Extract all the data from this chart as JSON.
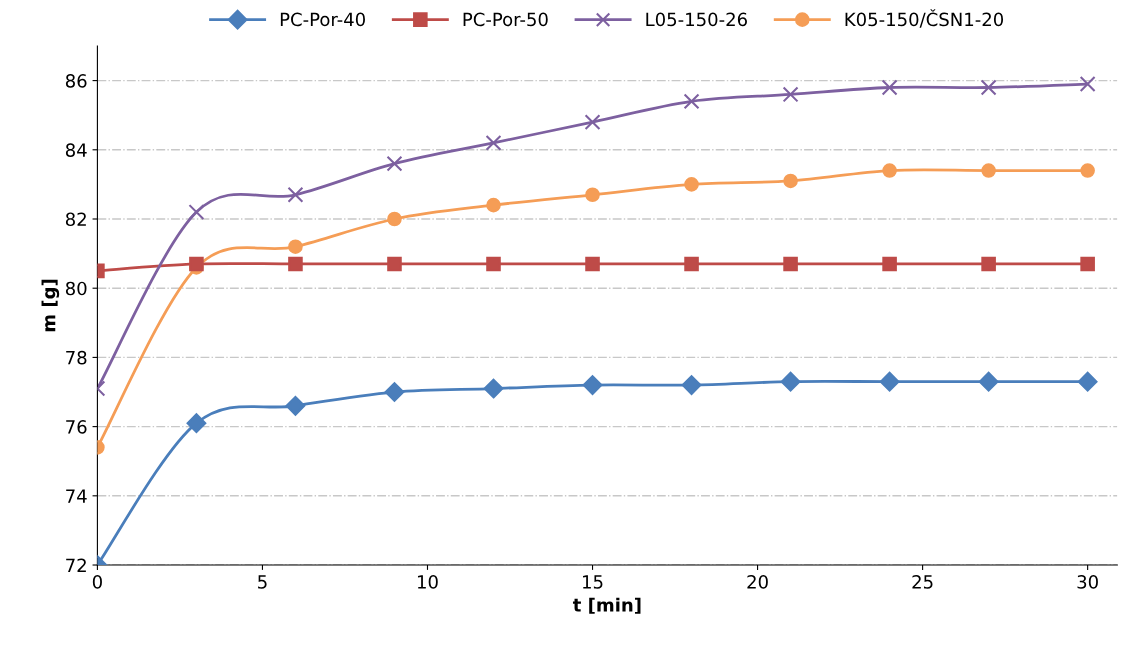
{
  "chart_data": {
    "type": "line",
    "xlabel": "t [min]",
    "ylabel": "m [g]",
    "x": [
      0,
      3,
      6,
      9,
      12,
      15,
      18,
      21,
      24,
      27,
      30
    ],
    "xlim": [
      0,
      30.9
    ],
    "xticks": [
      0,
      5,
      10,
      15,
      20,
      25,
      30
    ],
    "ylim": [
      72,
      87
    ],
    "yticks": [
      72,
      74,
      76,
      78,
      80,
      82,
      84,
      86
    ],
    "grid": "y",
    "legend": "top",
    "line_style": "solid",
    "series": [
      {
        "name": "PC-Por-40",
        "color": "#4a7ebb",
        "marker": "diamond",
        "values": [
          72.0,
          76.1,
          76.6,
          77.0,
          77.1,
          77.2,
          77.2,
          77.3,
          77.3,
          77.3,
          77.3
        ]
      },
      {
        "name": "PC-Por-50",
        "color": "#be4b48",
        "marker": "square",
        "values": [
          80.5,
          80.7,
          80.7,
          80.7,
          80.7,
          80.7,
          80.7,
          80.7,
          80.7,
          80.7,
          80.7
        ]
      },
      {
        "name": "L05-150-26",
        "color": "#7d60a0",
        "marker": "cross",
        "values": [
          77.1,
          82.2,
          82.7,
          83.6,
          84.2,
          84.8,
          85.4,
          85.6,
          85.8,
          85.8,
          85.9
        ]
      },
      {
        "name": "K05-150/ČSN1-20",
        "color": "#f59d56",
        "marker": "circle",
        "values": [
          75.4,
          80.6,
          81.2,
          82.0,
          82.4,
          82.7,
          83.0,
          83.1,
          83.4,
          83.4,
          83.4
        ]
      }
    ]
  }
}
